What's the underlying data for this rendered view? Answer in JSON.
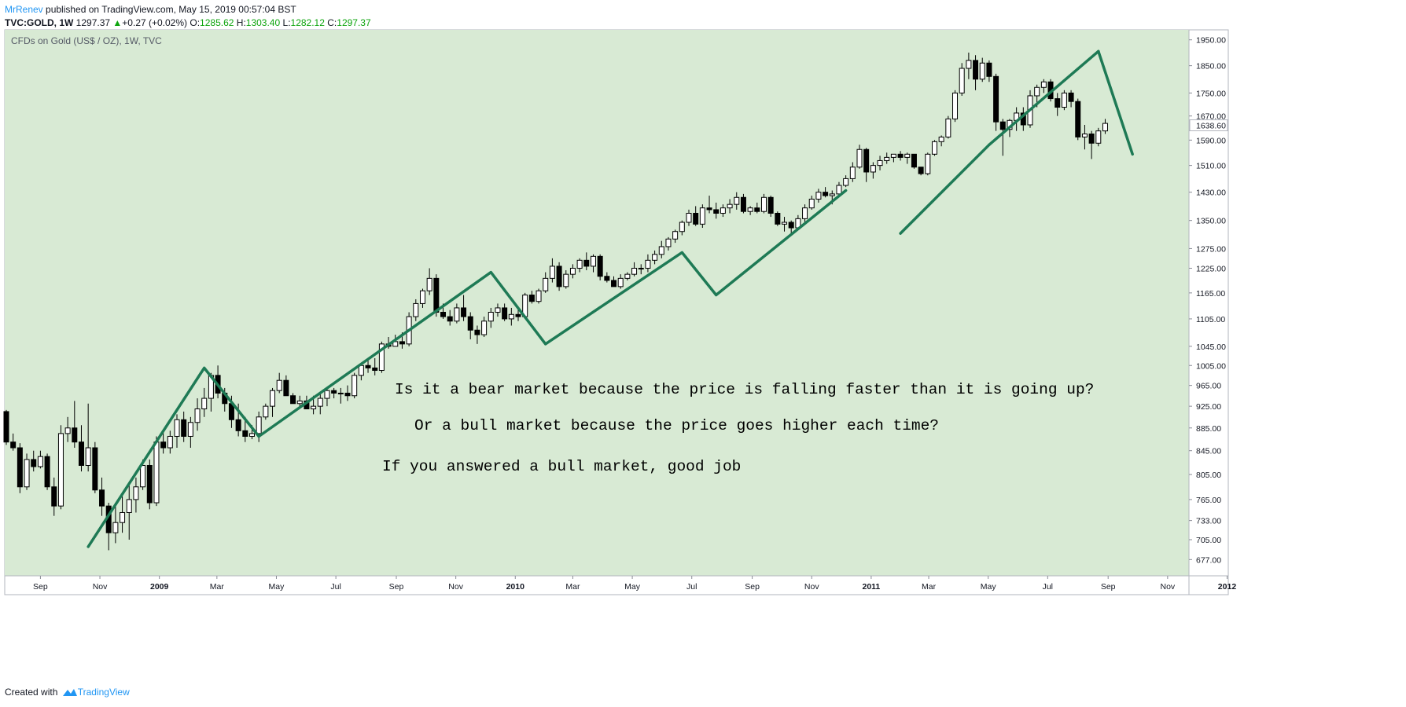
{
  "header": {
    "author": "MrRenev",
    "published": "published on TradingView.com, May 15, 2019 00:57:04 BST",
    "symbol": "TVC:GOLD, 1W",
    "price": "1297.37",
    "up_arrow": "▲",
    "change": "+0.27 (+0.02%)",
    "open_label": "O:",
    "open": "1285.62",
    "high_label": "H:",
    "high": "1303.40",
    "low_label": "L:",
    "low": "1282.12",
    "close_label": "C:",
    "close": "1297.37"
  },
  "footer": {
    "created_with": "Created with",
    "brand": "TradingView"
  },
  "colors": {
    "chart_bg": "#d8ead4",
    "trend_line": "#1e7a55",
    "last_price_bg": "#ffffff"
  },
  "chart_data": {
    "type": "candlestick",
    "title": "CFDs on Gold (US$ / OZ), 1W, TVC",
    "interval": "1W",
    "y_scale": "log",
    "ylim": [
      655,
      1990
    ],
    "y_ticks": [
      "677.00",
      "705.00",
      "733.00",
      "765.00",
      "805.00",
      "845.00",
      "885.00",
      "925.00",
      "965.00",
      "1005.00",
      "1045.00",
      "1105.00",
      "1165.00",
      "1225.00",
      "1275.00",
      "1350.00",
      "1430.00",
      "1510.00",
      "1590.00",
      "1670.00",
      "1750.00",
      "1850.00",
      "1950.00"
    ],
    "last_price": "1638.60",
    "x_ticks": [
      {
        "label": "Sep",
        "bold": false
      },
      {
        "label": "Nov",
        "bold": false
      },
      {
        "label": "2009",
        "bold": true
      },
      {
        "label": "Mar",
        "bold": false
      },
      {
        "label": "May",
        "bold": false
      },
      {
        "label": "Jul",
        "bold": false
      },
      {
        "label": "Sep",
        "bold": false
      },
      {
        "label": "Nov",
        "bold": false
      },
      {
        "label": "2010",
        "bold": true
      },
      {
        "label": "Mar",
        "bold": false
      },
      {
        "label": "May",
        "bold": false
      },
      {
        "label": "Jul",
        "bold": false
      },
      {
        "label": "Sep",
        "bold": false
      },
      {
        "label": "Nov",
        "bold": false
      },
      {
        "label": "2011",
        "bold": true
      },
      {
        "label": "Mar",
        "bold": false
      },
      {
        "label": "May",
        "bold": false
      },
      {
        "label": "Jul",
        "bold": false
      },
      {
        "label": "Sep",
        "bold": false
      },
      {
        "label": "Nov",
        "bold": false
      },
      {
        "label": "2012",
        "bold": true
      }
    ],
    "annotations": [
      "Is it a bear market because the price is falling faster than it is going up?",
      "Or a bull market because the price goes higher each time?",
      "If you answered a bull market, good job"
    ],
    "trend_points": [
      {
        "date": "2008-10-20",
        "price": 695
      },
      {
        "date": "2009-02-16",
        "price": 1000
      },
      {
        "date": "2009-04-13",
        "price": 870
      },
      {
        "date": "2009-12-07",
        "price": 1215
      },
      {
        "date": "2010-02-01",
        "price": 1050
      },
      {
        "date": "2010-06-21",
        "price": 1265
      },
      {
        "date": "2010-07-26",
        "price": 1160
      },
      {
        "date": "2010-12-06",
        "price": 1435
      },
      {
        "date": "2011-01-31",
        "price": 1315
      },
      {
        "date": "2011-05-02",
        "price": 1575
      },
      {
        "date": "2011-08-22",
        "price": 1905
      },
      {
        "date": "2011-09-26",
        "price": 1545
      }
    ],
    "trend_segments": [
      [
        0,
        1,
        2
      ],
      [
        2,
        3,
        4,
        5,
        6,
        7
      ],
      [
        8,
        9
      ],
      [
        9,
        10
      ],
      [
        10,
        11
      ]
    ],
    "candles_start": "2008-07-28",
    "candles": [
      [
        915,
        918,
        855,
        860
      ],
      [
        860,
        875,
        845,
        850
      ],
      [
        850,
        858,
        775,
        785
      ],
      [
        785,
        840,
        780,
        830
      ],
      [
        830,
        845,
        810,
        818
      ],
      [
        818,
        845,
        815,
        835
      ],
      [
        835,
        840,
        780,
        785
      ],
      [
        785,
        800,
        740,
        755
      ],
      [
        755,
        890,
        750,
        875
      ],
      [
        875,
        905,
        860,
        885
      ],
      [
        885,
        935,
        850,
        860
      ],
      [
        860,
        890,
        810,
        820
      ],
      [
        820,
        930,
        810,
        850
      ],
      [
        850,
        860,
        775,
        780
      ],
      [
        780,
        800,
        740,
        755
      ],
      [
        755,
        760,
        690,
        715
      ],
      [
        715,
        760,
        700,
        730
      ],
      [
        730,
        770,
        715,
        745
      ],
      [
        745,
        790,
        705,
        765
      ],
      [
        765,
        800,
        745,
        785
      ],
      [
        785,
        830,
        780,
        820
      ],
      [
        820,
        830,
        750,
        760
      ],
      [
        760,
        870,
        755,
        860
      ],
      [
        860,
        880,
        840,
        850
      ],
      [
        850,
        880,
        840,
        870
      ],
      [
        870,
        910,
        850,
        900
      ],
      [
        900,
        915,
        860,
        870
      ],
      [
        870,
        905,
        850,
        895
      ],
      [
        895,
        940,
        880,
        920
      ],
      [
        920,
        960,
        905,
        940
      ],
      [
        940,
        990,
        915,
        985
      ],
      [
        985,
        1005,
        940,
        950
      ],
      [
        950,
        960,
        915,
        930
      ],
      [
        930,
        945,
        885,
        900
      ],
      [
        900,
        930,
        870,
        880
      ],
      [
        880,
        905,
        860,
        870
      ],
      [
        870,
        890,
        865,
        875
      ],
      [
        875,
        915,
        860,
        905
      ],
      [
        905,
        930,
        900,
        925
      ],
      [
        925,
        960,
        905,
        955
      ],
      [
        955,
        990,
        950,
        975
      ],
      [
        975,
        985,
        950,
        945
      ],
      [
        945,
        950,
        930,
        930
      ],
      [
        930,
        945,
        920,
        935
      ],
      [
        935,
        945,
        925,
        920
      ],
      [
        920,
        945,
        910,
        925
      ],
      [
        925,
        950,
        910,
        940
      ],
      [
        940,
        960,
        925,
        955
      ],
      [
        955,
        960,
        940,
        950
      ],
      [
        950,
        960,
        930,
        950
      ],
      [
        950,
        965,
        935,
        945
      ],
      [
        945,
        990,
        940,
        985
      ],
      [
        985,
        1010,
        975,
        1005
      ],
      [
        1005,
        1020,
        990,
        1000
      ],
      [
        1000,
        1020,
        985,
        995
      ],
      [
        995,
        1055,
        990,
        1050
      ],
      [
        1050,
        1065,
        1040,
        1045
      ],
      [
        1045,
        1070,
        1045,
        1055
      ],
      [
        1055,
        1075,
        1040,
        1050
      ],
      [
        1050,
        1120,
        1045,
        1110
      ],
      [
        1110,
        1150,
        1100,
        1140
      ],
      [
        1140,
        1175,
        1130,
        1170
      ],
      [
        1170,
        1225,
        1160,
        1200
      ],
      [
        1200,
        1210,
        1110,
        1120
      ],
      [
        1120,
        1140,
        1105,
        1110
      ],
      [
        1110,
        1125,
        1090,
        1100
      ],
      [
        1100,
        1140,
        1095,
        1130
      ],
      [
        1130,
        1160,
        1100,
        1110
      ],
      [
        1110,
        1120,
        1060,
        1080
      ],
      [
        1080,
        1090,
        1050,
        1070
      ],
      [
        1070,
        1110,
        1065,
        1100
      ],
      [
        1100,
        1130,
        1085,
        1120
      ],
      [
        1120,
        1140,
        1110,
        1130
      ],
      [
        1130,
        1140,
        1100,
        1105
      ],
      [
        1105,
        1130,
        1090,
        1115
      ],
      [
        1115,
        1130,
        1100,
        1110
      ],
      [
        1110,
        1165,
        1105,
        1160
      ],
      [
        1160,
        1170,
        1140,
        1145
      ],
      [
        1145,
        1175,
        1140,
        1170
      ],
      [
        1170,
        1215,
        1165,
        1200
      ],
      [
        1200,
        1250,
        1190,
        1230
      ],
      [
        1230,
        1240,
        1170,
        1180
      ],
      [
        1180,
        1220,
        1175,
        1210
      ],
      [
        1210,
        1235,
        1200,
        1225
      ],
      [
        1225,
        1250,
        1215,
        1245
      ],
      [
        1245,
        1265,
        1220,
        1230
      ],
      [
        1230,
        1260,
        1215,
        1255
      ],
      [
        1255,
        1260,
        1195,
        1205
      ],
      [
        1205,
        1215,
        1190,
        1195
      ],
      [
        1195,
        1205,
        1180,
        1180
      ],
      [
        1180,
        1210,
        1175,
        1200
      ],
      [
        1200,
        1215,
        1195,
        1210
      ],
      [
        1210,
        1240,
        1205,
        1225
      ],
      [
        1225,
        1235,
        1210,
        1225
      ],
      [
        1225,
        1260,
        1215,
        1245
      ],
      [
        1245,
        1270,
        1235,
        1260
      ],
      [
        1260,
        1295,
        1250,
        1280
      ],
      [
        1280,
        1305,
        1270,
        1300
      ],
      [
        1300,
        1325,
        1290,
        1320
      ],
      [
        1320,
        1350,
        1310,
        1345
      ],
      [
        1345,
        1380,
        1335,
        1370
      ],
      [
        1370,
        1390,
        1335,
        1340
      ],
      [
        1340,
        1395,
        1330,
        1385
      ],
      [
        1385,
        1420,
        1370,
        1380
      ],
      [
        1380,
        1400,
        1355,
        1370
      ],
      [
        1370,
        1395,
        1360,
        1385
      ],
      [
        1385,
        1410,
        1370,
        1395
      ],
      [
        1395,
        1430,
        1380,
        1415
      ],
      [
        1415,
        1425,
        1370,
        1375
      ],
      [
        1375,
        1390,
        1365,
        1385
      ],
      [
        1385,
        1400,
        1370,
        1375
      ],
      [
        1375,
        1425,
        1370,
        1415
      ],
      [
        1415,
        1420,
        1360,
        1370
      ],
      [
        1370,
        1375,
        1335,
        1340
      ],
      [
        1340,
        1360,
        1320,
        1345
      ],
      [
        1345,
        1350,
        1310,
        1330
      ],
      [
        1330,
        1365,
        1325,
        1355
      ],
      [
        1355,
        1395,
        1345,
        1385
      ],
      [
        1385,
        1420,
        1380,
        1410
      ],
      [
        1410,
        1440,
        1400,
        1430
      ],
      [
        1430,
        1445,
        1415,
        1420
      ],
      [
        1420,
        1435,
        1395,
        1425
      ],
      [
        1425,
        1460,
        1420,
        1450
      ],
      [
        1450,
        1480,
        1445,
        1470
      ],
      [
        1470,
        1520,
        1460,
        1505
      ],
      [
        1505,
        1575,
        1500,
        1560
      ],
      [
        1560,
        1565,
        1460,
        1490
      ],
      [
        1490,
        1520,
        1470,
        1510
      ],
      [
        1510,
        1540,
        1495,
        1525
      ],
      [
        1525,
        1550,
        1515,
        1535
      ],
      [
        1535,
        1545,
        1520,
        1545
      ],
      [
        1545,
        1555,
        1525,
        1535
      ],
      [
        1535,
        1550,
        1515,
        1545
      ],
      [
        1545,
        1545,
        1500,
        1505
      ],
      [
        1505,
        1505,
        1480,
        1485
      ],
      [
        1485,
        1550,
        1480,
        1545
      ],
      [
        1545,
        1590,
        1540,
        1585
      ],
      [
        1585,
        1605,
        1570,
        1600
      ],
      [
        1600,
        1670,
        1595,
        1660
      ],
      [
        1660,
        1760,
        1650,
        1750
      ],
      [
        1750,
        1860,
        1740,
        1840
      ],
      [
        1840,
        1900,
        1800,
        1870
      ],
      [
        1870,
        1890,
        1760,
        1800
      ],
      [
        1800,
        1880,
        1790,
        1860
      ],
      [
        1860,
        1870,
        1790,
        1810
      ],
      [
        1810,
        1820,
        1620,
        1650
      ],
      [
        1650,
        1660,
        1540,
        1625
      ],
      [
        1625,
        1660,
        1600,
        1655
      ],
      [
        1655,
        1700,
        1620,
        1680
      ],
      [
        1680,
        1700,
        1620,
        1640
      ],
      [
        1640,
        1760,
        1630,
        1740
      ],
      [
        1740,
        1780,
        1700,
        1770
      ],
      [
        1770,
        1800,
        1750,
        1790
      ],
      [
        1790,
        1800,
        1720,
        1730
      ],
      [
        1730,
        1750,
        1670,
        1700
      ],
      [
        1700,
        1760,
        1690,
        1750
      ],
      [
        1750,
        1760,
        1700,
        1720
      ],
      [
        1720,
        1730,
        1590,
        1600
      ],
      [
        1600,
        1640,
        1560,
        1610
      ],
      [
        1610,
        1620,
        1530,
        1580
      ],
      [
        1580,
        1630,
        1570,
        1620
      ],
      [
        1620,
        1660,
        1610,
        1645
      ]
    ]
  }
}
